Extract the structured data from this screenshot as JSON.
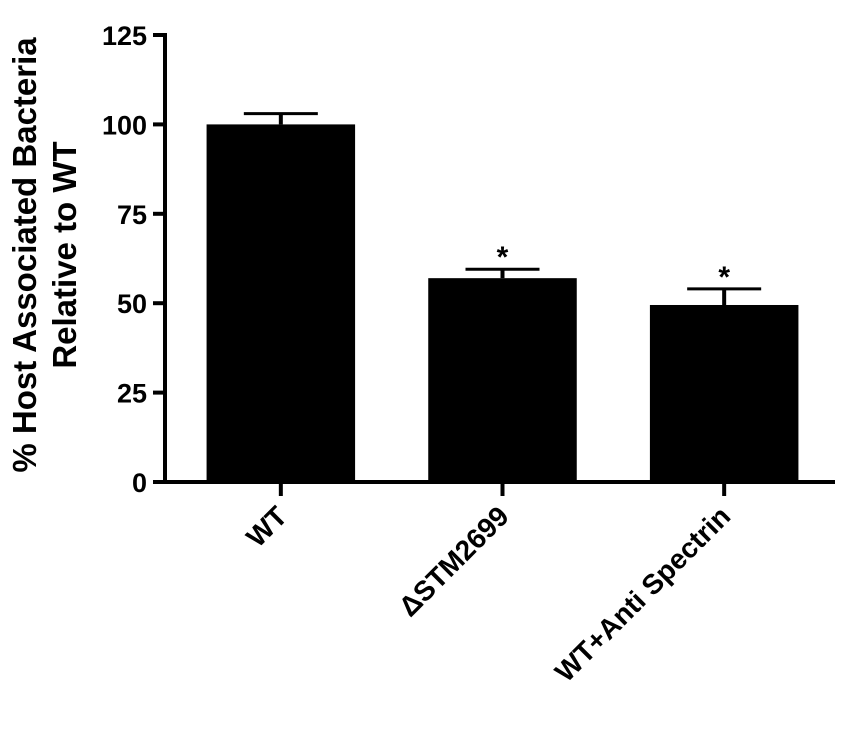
{
  "chart_data": {
    "type": "bar",
    "categories": [
      "WT",
      "ΔSTM2699",
      "WT+Anti Spectrin"
    ],
    "values": [
      100,
      57,
      49.5
    ],
    "errors": [
      3,
      2.5,
      4.5
    ],
    "significance": [
      "",
      "*",
      "*"
    ],
    "ylabel_line1": "% Host  Associated Bacteria",
    "ylabel_line2": "Relative to WT",
    "xlabel": "",
    "ylim": [
      0,
      125
    ],
    "yticks": [
      0,
      25,
      50,
      75,
      100,
      125
    ],
    "grid": false,
    "bar_color": "#000000"
  }
}
